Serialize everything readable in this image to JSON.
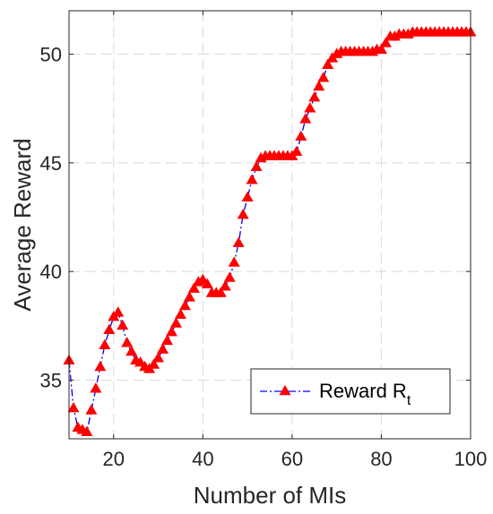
{
  "chart_data": {
    "type": "line",
    "xlabel": "Number of MIs",
    "ylabel": "Average Reward",
    "xlim": [
      10,
      100
    ],
    "ylim": [
      32.3,
      52.0
    ],
    "xticks": [
      20,
      40,
      60,
      80,
      100
    ],
    "yticks": [
      35,
      40,
      45,
      50
    ],
    "grid": true,
    "legend_position": "bottom-right",
    "legend_label": "Reward R",
    "legend_subscript": "t",
    "series": [
      {
        "name": "Reward Rt",
        "color": "#0000ff",
        "marker_color": "#ff0000",
        "marker": "triangle",
        "line_style": "dash-dot",
        "x": [
          10,
          11,
          12,
          13,
          14,
          15,
          16,
          17,
          18,
          19,
          20,
          21,
          22,
          23,
          24,
          25,
          26,
          27,
          28,
          29,
          30,
          31,
          32,
          33,
          34,
          35,
          36,
          37,
          38,
          39,
          40,
          41,
          42,
          43,
          44,
          45,
          46,
          47,
          48,
          49,
          50,
          51,
          52,
          53,
          54,
          55,
          56,
          57,
          58,
          59,
          60,
          61,
          62,
          63,
          64,
          65,
          66,
          67,
          68,
          69,
          70,
          71,
          72,
          73,
          74,
          75,
          76,
          77,
          78,
          79,
          80,
          81,
          82,
          83,
          84,
          85,
          86,
          87,
          88,
          89,
          90,
          91,
          92,
          93,
          94,
          95,
          96,
          97,
          98,
          99,
          100
        ],
        "values": [
          35.9,
          33.7,
          32.8,
          32.7,
          32.6,
          33.6,
          34.6,
          35.6,
          36.6,
          37.3,
          37.9,
          38.1,
          37.5,
          36.7,
          36.3,
          35.9,
          35.8,
          35.6,
          35.5,
          35.7,
          36.0,
          36.4,
          36.8,
          37.2,
          37.6,
          38.0,
          38.4,
          38.8,
          39.2,
          39.5,
          39.6,
          39.4,
          39.0,
          39.0,
          39.0,
          39.3,
          39.7,
          40.4,
          41.3,
          42.6,
          43.4,
          44.2,
          44.8,
          45.2,
          45.3,
          45.3,
          45.3,
          45.3,
          45.3,
          45.3,
          45.3,
          45.5,
          46.2,
          47.0,
          47.5,
          48.0,
          48.5,
          48.9,
          49.5,
          49.8,
          50.0,
          50.1,
          50.1,
          50.1,
          50.1,
          50.1,
          50.1,
          50.1,
          50.1,
          50.2,
          50.2,
          50.5,
          50.8,
          50.8,
          50.9,
          50.9,
          50.9,
          51.0,
          51.0,
          51.0,
          51.0,
          51.0,
          51.0,
          51.0,
          51.0,
          51.0,
          51.0,
          51.0,
          51.0,
          51.0,
          51.0
        ]
      }
    ]
  }
}
